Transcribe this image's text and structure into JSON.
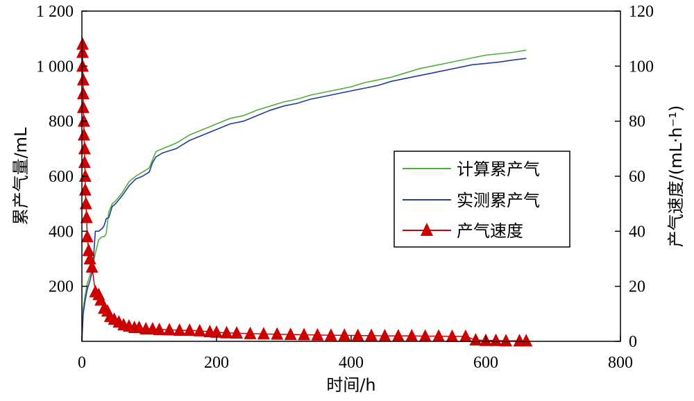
{
  "chart_data": {
    "type": "line",
    "xlabel": "时间/h",
    "ylabel_left": "累产气量/mL",
    "ylabel_right": "产气速度/(mL·h⁻¹)",
    "xlim": [
      0,
      800
    ],
    "ylim_left": [
      0,
      1200
    ],
    "ylim_right": [
      0,
      120
    ],
    "x_ticks": [
      0,
      200,
      400,
      600,
      800
    ],
    "x_tick_labels": [
      "0",
      "200",
      "400",
      "600",
      "800"
    ],
    "y_left_ticks": [
      200,
      400,
      600,
      800,
      1000,
      1200
    ],
    "y_left_tick_labels": [
      "200",
      "400",
      "600",
      "800",
      "1 000",
      "1 200"
    ],
    "y_right_ticks": [
      0,
      20,
      40,
      60,
      80,
      100,
      120
    ],
    "y_right_tick_labels": [
      "0",
      "20",
      "40",
      "60",
      "80",
      "100",
      "120"
    ],
    "legend_position": "center-right",
    "grid": false,
    "series": [
      {
        "name": "计算累产气",
        "axis": "left",
        "kind": "line",
        "color": "#4daf3a",
        "x": [
          0,
          2,
          5,
          8,
          12,
          16,
          20,
          25,
          30,
          33,
          36,
          40,
          45,
          50,
          60,
          70,
          80,
          90,
          100,
          105,
          110,
          120,
          140,
          160,
          180,
          200,
          220,
          240,
          260,
          280,
          300,
          320,
          340,
          360,
          380,
          400,
          420,
          440,
          460,
          480,
          500,
          520,
          540,
          560,
          580,
          600,
          620,
          640,
          660
        ],
        "y": [
          0,
          120,
          170,
          210,
          240,
          270,
          320,
          370,
          380,
          380,
          390,
          470,
          500,
          510,
          540,
          580,
          600,
          615,
          630,
          660,
          690,
          700,
          720,
          750,
          770,
          790,
          810,
          820,
          840,
          855,
          870,
          880,
          895,
          905,
          915,
          925,
          940,
          950,
          960,
          975,
          990,
          1000,
          1010,
          1020,
          1030,
          1040,
          1045,
          1050,
          1058
        ]
      },
      {
        "name": "实测累产气",
        "axis": "left",
        "kind": "line",
        "color": "#1f3b9c",
        "x": [
          0,
          2,
          5,
          8,
          12,
          16,
          20,
          25,
          30,
          33,
          36,
          40,
          45,
          50,
          60,
          70,
          80,
          90,
          100,
          105,
          110,
          120,
          140,
          160,
          180,
          200,
          220,
          240,
          260,
          280,
          300,
          320,
          340,
          360,
          380,
          400,
          420,
          440,
          460,
          480,
          500,
          520,
          540,
          560,
          580,
          600,
          620,
          640,
          660
        ],
        "y": [
          0,
          100,
          150,
          190,
          220,
          260,
          400,
          400,
          410,
          420,
          445,
          450,
          490,
          500,
          530,
          565,
          590,
          600,
          615,
          650,
          670,
          685,
          700,
          730,
          750,
          770,
          790,
          800,
          820,
          840,
          855,
          865,
          880,
          890,
          900,
          910,
          920,
          930,
          945,
          955,
          965,
          975,
          985,
          995,
          1005,
          1010,
          1015,
          1022,
          1028
        ]
      },
      {
        "name": "产气速度",
        "axis": "right",
        "kind": "line+triangle",
        "color": "#cc0000",
        "x": [
          1,
          1,
          1,
          2,
          2,
          2,
          3,
          3,
          4,
          4,
          5,
          5,
          6,
          7,
          8,
          10,
          12,
          15,
          20,
          25,
          28,
          33,
          38,
          42,
          48,
          55,
          62,
          70,
          78,
          85,
          95,
          105,
          115,
          130,
          145,
          160,
          175,
          190,
          200,
          215,
          230,
          250,
          270,
          290,
          310,
          330,
          350,
          370,
          390,
          410,
          430,
          450,
          470,
          490,
          510,
          530,
          550,
          570,
          585,
          600,
          615,
          630,
          650,
          660
        ],
        "y": [
          108,
          105,
          100,
          95,
          90,
          85,
          80,
          75,
          70,
          65,
          60,
          55,
          50,
          45,
          38,
          33,
          30,
          27,
          18,
          17,
          15,
          12,
          11,
          9,
          8,
          7,
          6,
          5.5,
          5,
          5,
          4.5,
          4.5,
          4.3,
          4.2,
          4,
          4,
          3.8,
          3.5,
          3.3,
          3.1,
          3,
          2.8,
          2.7,
          2.6,
          2.5,
          2.4,
          2.3,
          2.2,
          2.2,
          2.1,
          2.1,
          2,
          2,
          2,
          1.9,
          1.9,
          1.8,
          1.8,
          0.5,
          0.3,
          0.3,
          0.2,
          0.2,
          0.2
        ]
      }
    ]
  }
}
